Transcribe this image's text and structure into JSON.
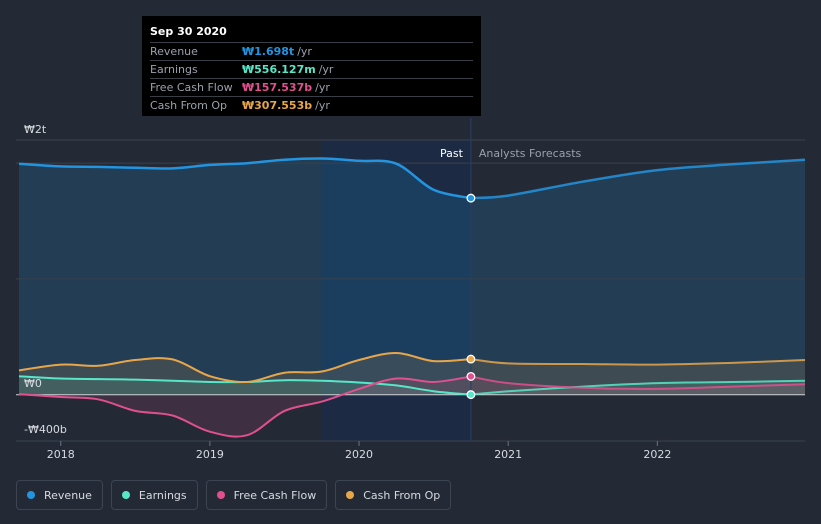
{
  "tooltip": {
    "date": "Sep 30 2020",
    "rows": [
      {
        "label": "Revenue",
        "value": "₩1.698t",
        "unit": "/yr",
        "color": "#2394df"
      },
      {
        "label": "Earnings",
        "value": "₩556.127m",
        "unit": "/yr",
        "color": "#58e6c8"
      },
      {
        "label": "Free Cash Flow",
        "value": "₩157.537b",
        "unit": "/yr",
        "color": "#e0508f"
      },
      {
        "label": "Cash From Op",
        "value": "₩307.553b",
        "unit": "/yr",
        "color": "#e8a64b"
      }
    ]
  },
  "legend": [
    {
      "label": "Revenue",
      "color": "#2394df"
    },
    {
      "label": "Earnings",
      "color": "#58e6c8"
    },
    {
      "label": "Free Cash Flow",
      "color": "#e0508f"
    },
    {
      "label": "Cash From Op",
      "color": "#e8a64b"
    }
  ],
  "chart_data": {
    "type": "line",
    "title": "",
    "y_unit": "₩ billions",
    "ylim": [
      -400,
      2000
    ],
    "y_ticks": [
      {
        "value": 2000,
        "label": "₩2t"
      },
      {
        "value": 0,
        "label": "₩0"
      },
      {
        "value": -400,
        "label": "-₩400b"
      }
    ],
    "xlim": [
      2017.7,
      2022.99
    ],
    "x_ticks": [
      {
        "value": 2018,
        "label": "2018"
      },
      {
        "value": 2019,
        "label": "2019"
      },
      {
        "value": 2020,
        "label": "2020"
      },
      {
        "value": 2021,
        "label": "2021"
      },
      {
        "value": 2022,
        "label": "2022"
      }
    ],
    "past_label": "Past",
    "forecast_label": "Analysts Forecasts",
    "forecast_start": 2020.75,
    "highlight_start": 2019.75,
    "series": [
      {
        "name": "Revenue",
        "color": "#2394df",
        "x": [
          2017.72,
          2018.0,
          2018.25,
          2018.5,
          2018.75,
          2019.0,
          2019.25,
          2019.5,
          2019.75,
          2020.0,
          2020.25,
          2020.5,
          2020.75,
          2021.0,
          2021.5,
          2022.0,
          2022.5,
          2022.99
        ],
        "y": [
          1995,
          1972,
          1968,
          1960,
          1955,
          1985,
          2000,
          2030,
          2040,
          2020,
          1995,
          1770,
          1698,
          1720,
          1840,
          1940,
          1990,
          2030
        ]
      },
      {
        "name": "Earnings",
        "color": "#58e6c8",
        "x": [
          2017.72,
          2018.0,
          2018.5,
          2019.0,
          2019.25,
          2019.5,
          2019.75,
          2020.0,
          2020.25,
          2020.5,
          2020.75,
          2021.0,
          2021.5,
          2022.0,
          2022.5,
          2022.99
        ],
        "y": [
          160,
          140,
          130,
          110,
          110,
          125,
          120,
          105,
          80,
          30,
          0.556,
          30,
          70,
          100,
          110,
          120
        ]
      },
      {
        "name": "Free Cash Flow",
        "color": "#e0508f",
        "x": [
          2017.72,
          2018.0,
          2018.25,
          2018.5,
          2018.75,
          2019.0,
          2019.25,
          2019.5,
          2019.75,
          2020.0,
          2020.25,
          2020.5,
          2020.75,
          2021.0,
          2021.5,
          2022.0,
          2022.5,
          2022.99
        ],
        "y": [
          5,
          -20,
          -40,
          -140,
          -180,
          -320,
          -350,
          -140,
          -60,
          50,
          140,
          110,
          157.537,
          100,
          60,
          50,
          70,
          90
        ]
      },
      {
        "name": "Cash From Op",
        "color": "#e8a64b",
        "x": [
          2017.72,
          2018.0,
          2018.25,
          2018.5,
          2018.75,
          2019.0,
          2019.25,
          2019.5,
          2019.75,
          2020.0,
          2020.25,
          2020.5,
          2020.75,
          2021.0,
          2021.5,
          2022.0,
          2022.5,
          2022.99
        ],
        "y": [
          210,
          260,
          250,
          300,
          305,
          160,
          110,
          190,
          200,
          300,
          360,
          290,
          307.553,
          270,
          265,
          260,
          275,
          300
        ]
      }
    ]
  }
}
